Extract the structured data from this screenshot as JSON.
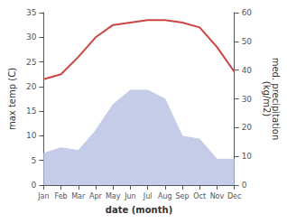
{
  "chart_data": {
    "type": "line",
    "categories": [
      "Jan",
      "Feb",
      "Mar",
      "Apr",
      "May",
      "Jun",
      "Jul",
      "Aug",
      "Sep",
      "Oct",
      "Nov",
      "Dec"
    ],
    "xlabel": "date (month)",
    "ylabel": "max temp (C)",
    "y2label": "med. precipitation\n(kg/m2)",
    "series": [
      {
        "type": "area",
        "axis": "y2",
        "color": "#c5cce8",
        "values": [
          11.0,
          13.0,
          12.0,
          19.0,
          28.0,
          33.0,
          33.0,
          30.0,
          17.0,
          16.0,
          9.0,
          9.0
        ]
      },
      {
        "type": "line",
        "axis": "y",
        "color": "#cc4444",
        "values": [
          21.5,
          22.5,
          26.0,
          30.0,
          32.5,
          33.0,
          33.5,
          33.5,
          33.0,
          32.0,
          28.0,
          23.0
        ]
      }
    ],
    "ylim": [
      0,
      35
    ],
    "yticks": [
      0,
      5,
      10,
      15,
      20,
      25,
      30,
      35
    ],
    "y2lim": [
      0,
      60
    ],
    "y2ticks": [
      0,
      10,
      20,
      30,
      40,
      50,
      60
    ],
    "grid": false
  }
}
